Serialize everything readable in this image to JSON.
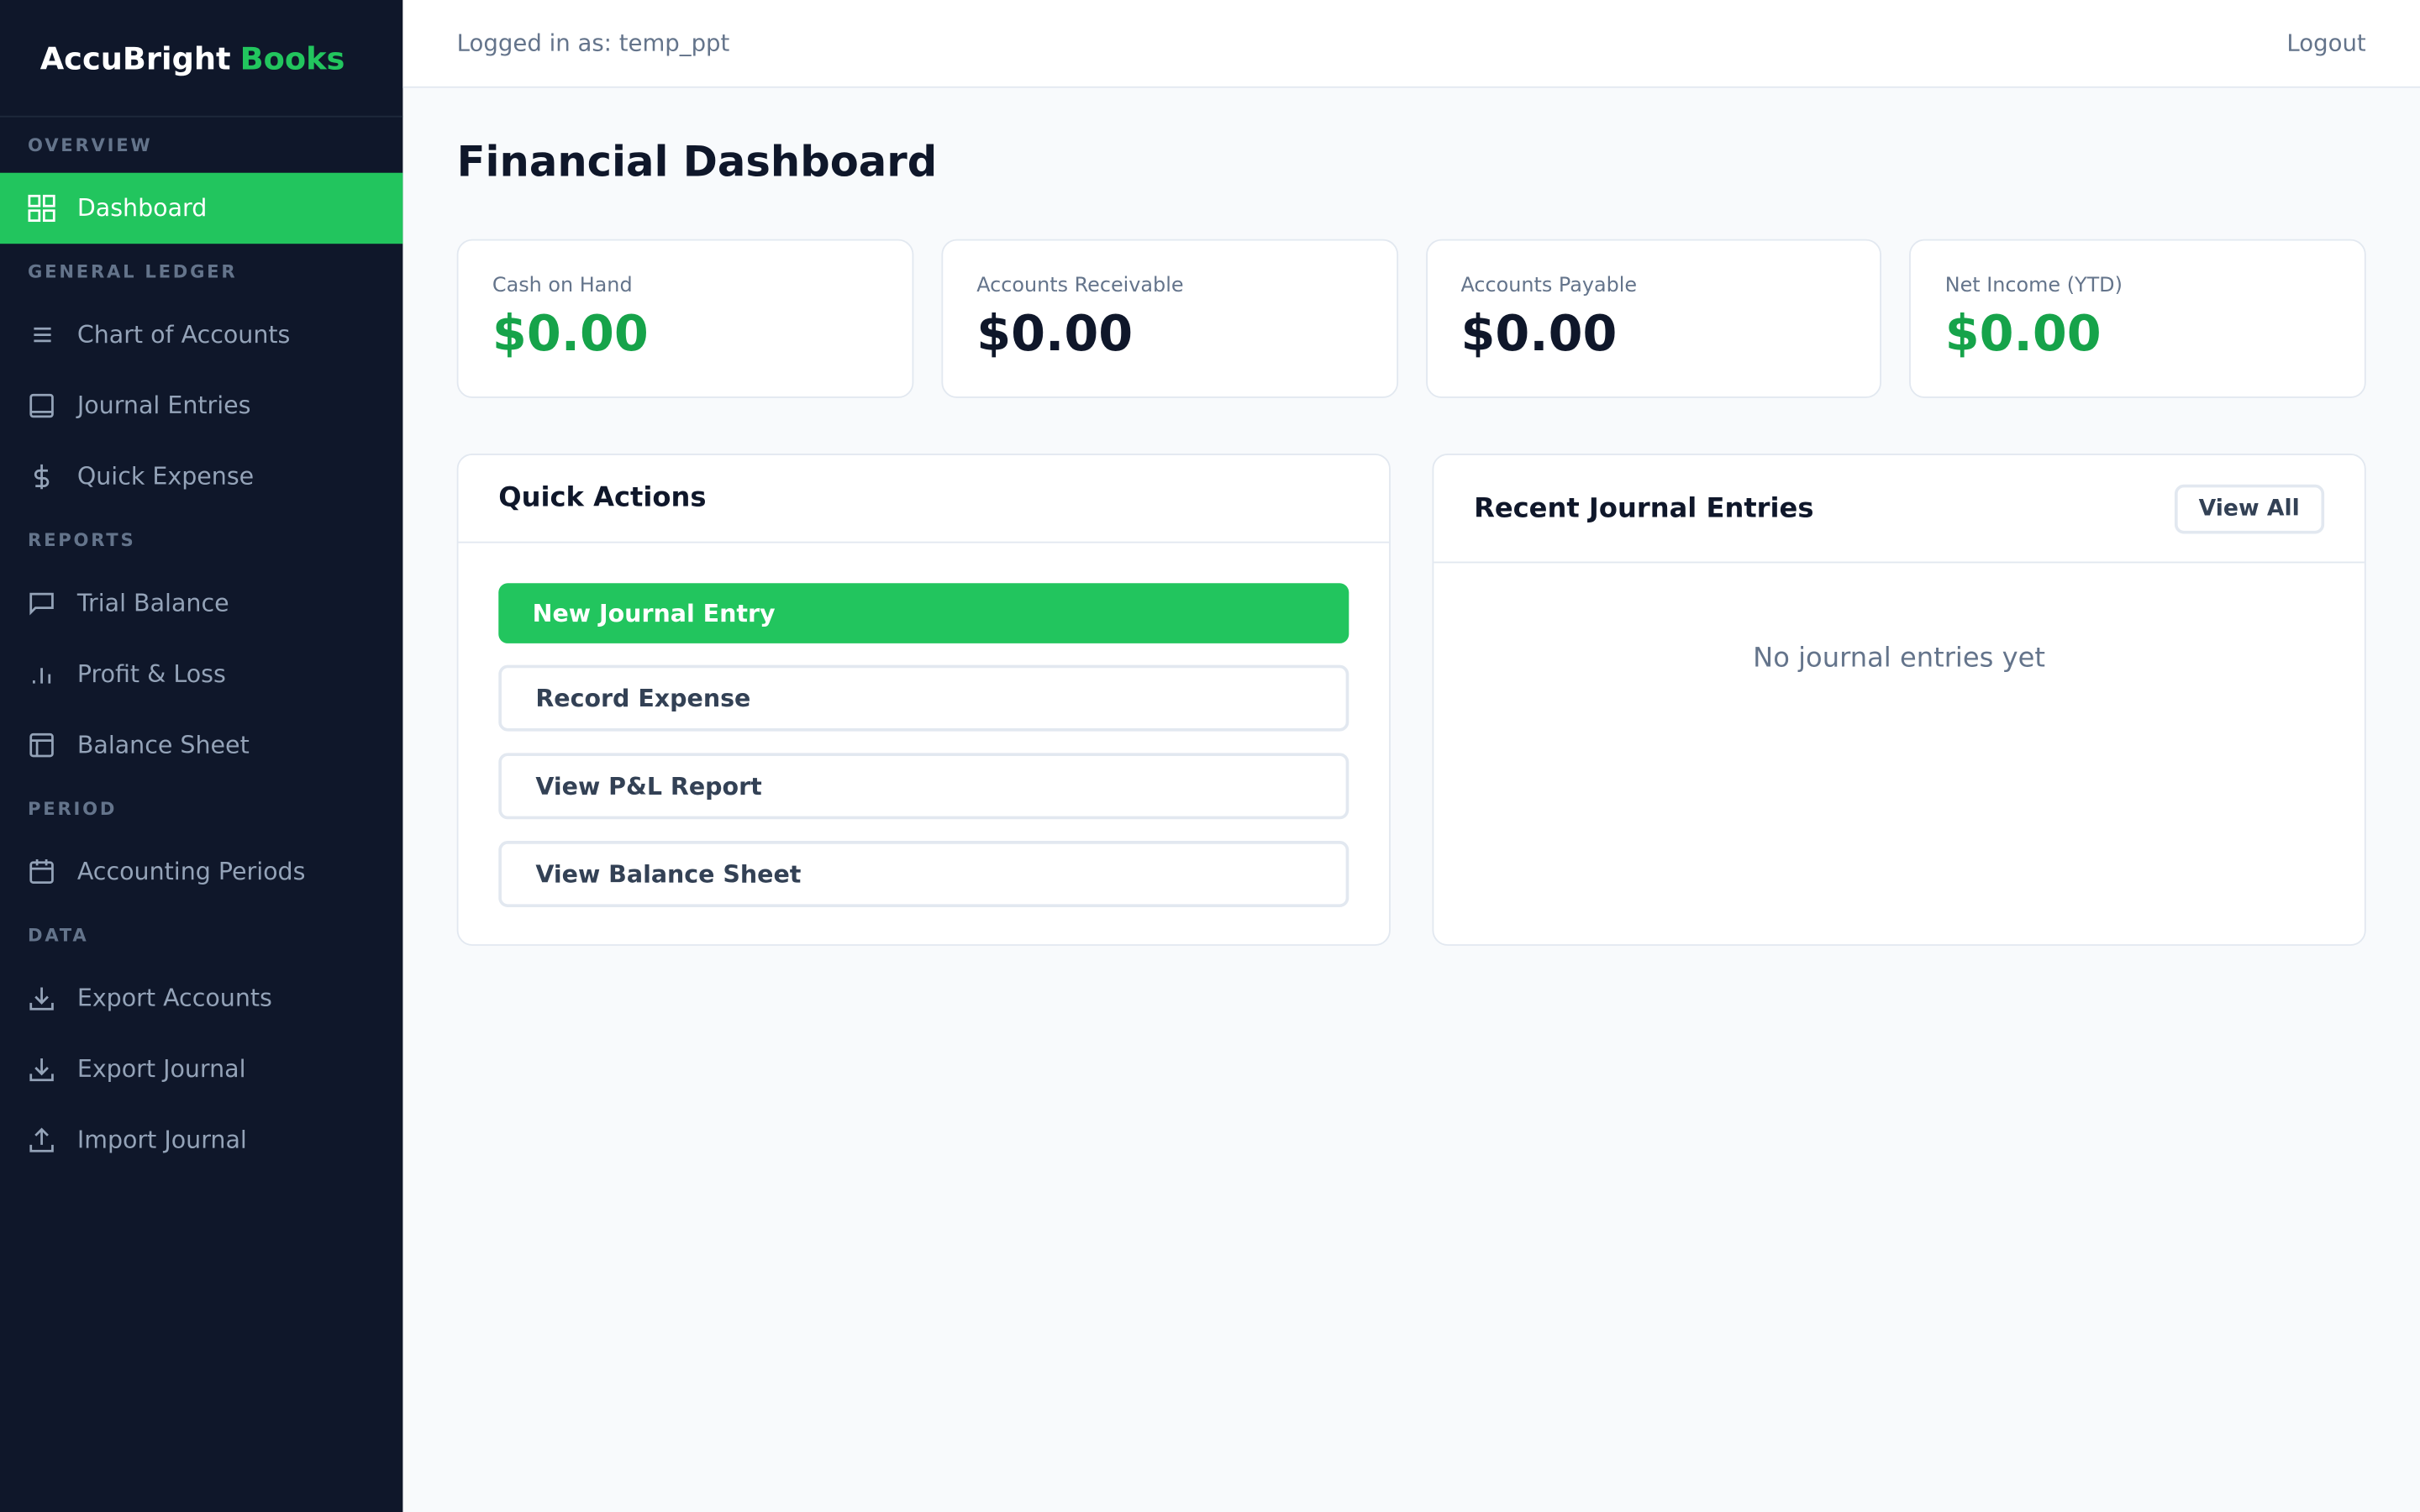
{
  "brand": {
    "name": "AccuBright",
    "accent": "Books"
  },
  "header": {
    "user": "Logged in as: temp_ppt",
    "logout": "Logout"
  },
  "sidebar": {
    "overview": "OVERVIEW",
    "dashboard": "Dashboard",
    "general_ledger": "GENERAL LEDGER",
    "chart_of_accounts": "Chart of Accounts",
    "journal_entries": "Journal Entries",
    "quick_expense": "Quick Expense",
    "reports": "REPORTS",
    "trial_balance": "Trial Balance",
    "profit_loss": "Profit & Loss",
    "balance_sheet": "Balance Sheet",
    "period": "PERIOD",
    "accounting_periods": "Accounting Periods",
    "data": "DATA",
    "export_accounts": "Export Accounts",
    "export_journal": "Export Journal",
    "import_journal": "Import Journal"
  },
  "page": {
    "title": "Financial Dashboard"
  },
  "stats": [
    {
      "label": "Cash on Hand",
      "value": "$0.00",
      "color": "#16a34a"
    },
    {
      "label": "Accounts Receivable",
      "value": "$0.00",
      "color": "#0f172a"
    },
    {
      "label": "Accounts Payable",
      "value": "$0.00",
      "color": "#0f172a"
    },
    {
      "label": "Net Income (YTD)",
      "value": "$0.00",
      "color": "#16a34a"
    }
  ],
  "quick_actions": {
    "title": "Quick Actions",
    "new_entry": "New Journal Entry",
    "record_expense": "Record Expense",
    "view_pl": "View P&L Report",
    "view_bs": "View Balance Sheet"
  },
  "recent": {
    "title": "Recent Journal Entries",
    "view_all": "View All",
    "empty": "No journal entries yet"
  },
  "colors": {
    "accent": "#22c55e",
    "sidebar": "#0f172a"
  }
}
